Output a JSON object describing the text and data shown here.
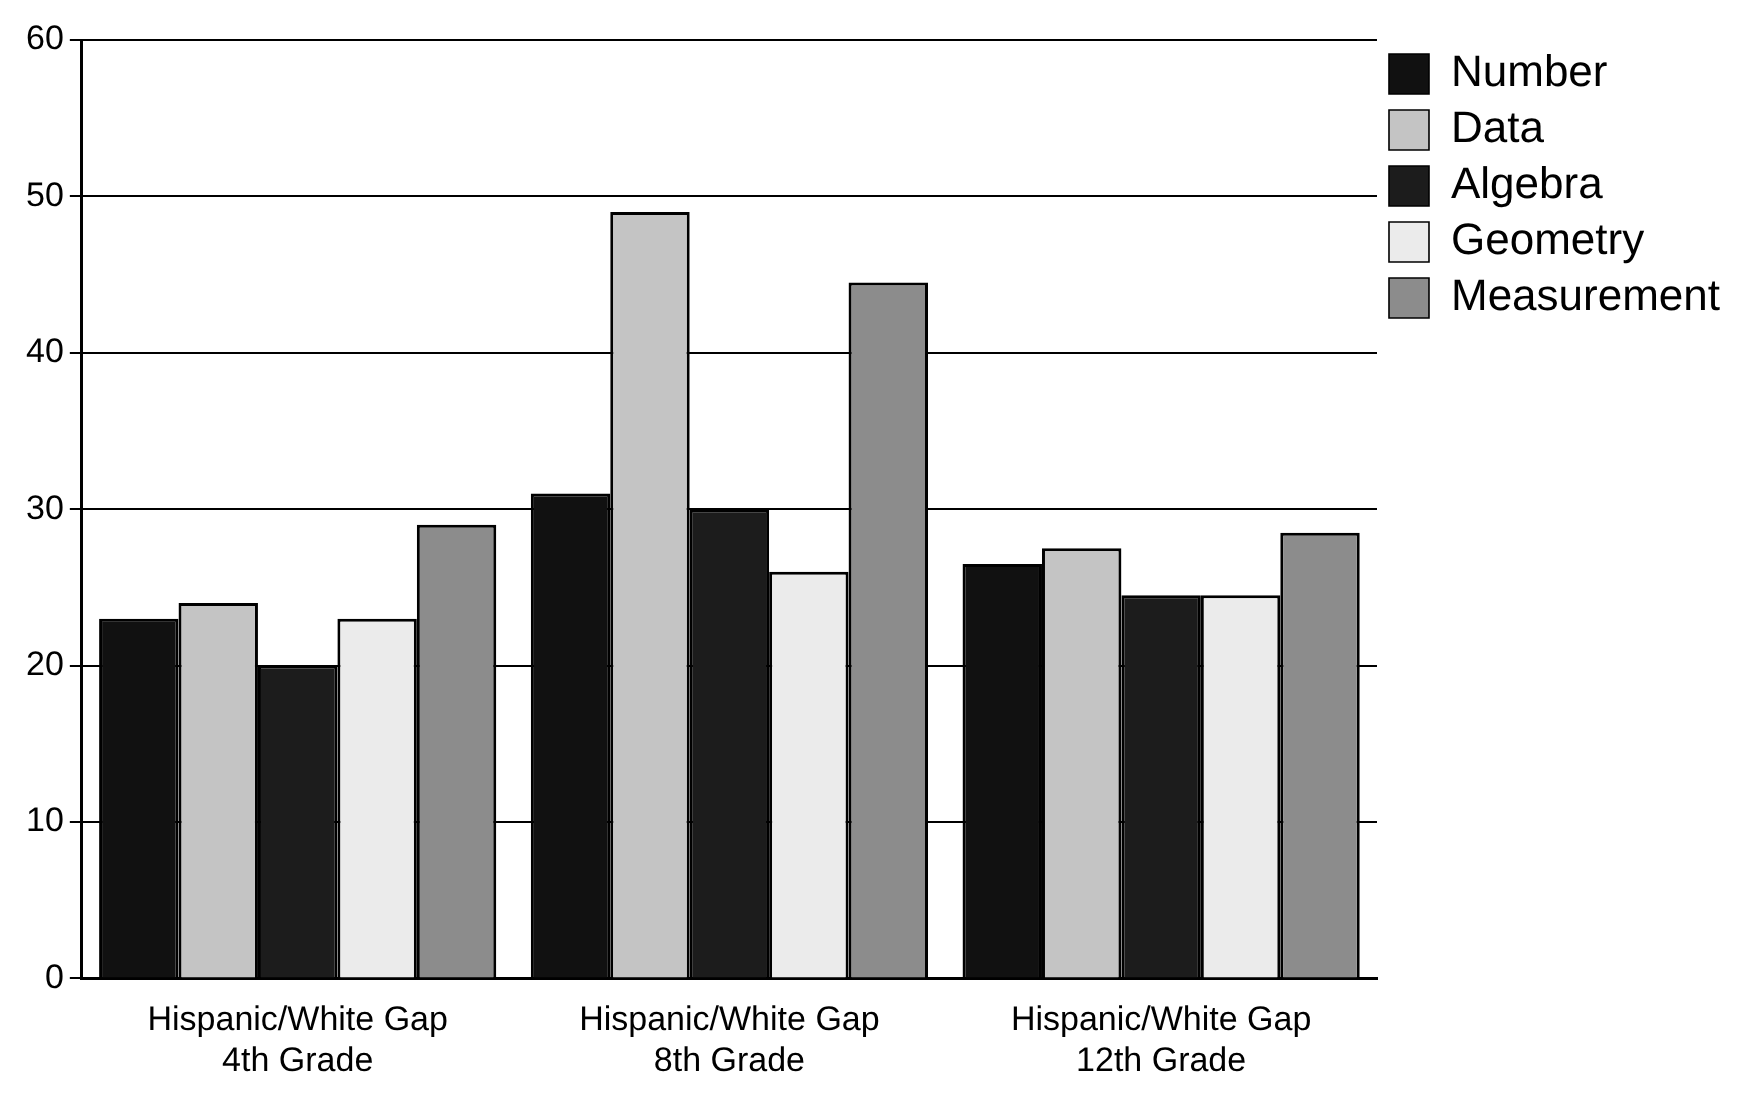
{
  "chart_data": {
    "type": "bar",
    "categories": [
      "Hispanic/White Gap\n4th Grade",
      "Hispanic/White Gap\n8th Grade",
      "Hispanic/White Gap\n12th Grade"
    ],
    "series": [
      {
        "name": "Number",
        "color": "#111111",
        "values": [
          23,
          31,
          26.5
        ]
      },
      {
        "name": "Data",
        "color": "#c4c4c4",
        "values": [
          24,
          49,
          27.5
        ]
      },
      {
        "name": "Algebra",
        "color": "#1c1c1c",
        "values": [
          20,
          30,
          24.5
        ]
      },
      {
        "name": "Geometry",
        "color": "#ebebeb",
        "values": [
          23,
          26,
          24.5
        ]
      },
      {
        "name": "Measurement",
        "color": "#8c8c8c",
        "values": [
          29,
          44.5,
          28.5
        ]
      }
    ],
    "ylim": [
      0,
      60
    ],
    "yticks": [
      0,
      10,
      20,
      30,
      40,
      50,
      60
    ],
    "grid": "y",
    "legend": "top right"
  }
}
